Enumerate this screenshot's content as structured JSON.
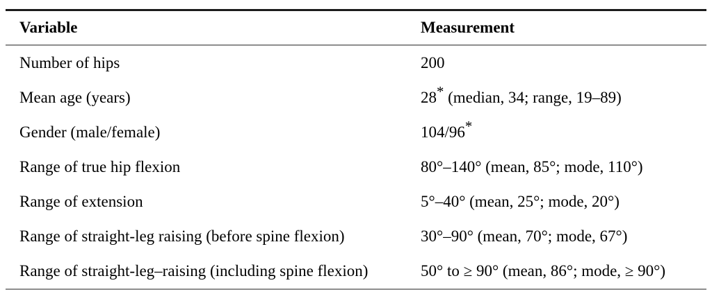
{
  "table": {
    "header": {
      "variable": "Variable",
      "measurement": "Measurement"
    },
    "rows": [
      {
        "variable": "Number of hips",
        "m_pre": "200",
        "m_sup": "",
        "m_post": ""
      },
      {
        "variable": "Mean age (years)",
        "m_pre": "28",
        "m_sup": "*",
        "m_post": " (median, 34; range, 19–89)"
      },
      {
        "variable": "Gender (male/female)",
        "m_pre": "104/96",
        "m_sup": "*",
        "m_post": ""
      },
      {
        "variable": "Range of true hip flexion",
        "m_pre": "80°–140° (mean, 85°; mode, 110°)",
        "m_sup": "",
        "m_post": ""
      },
      {
        "variable": "Range of extension",
        "m_pre": "5°–40° (mean, 25°; mode, 20°)",
        "m_sup": "",
        "m_post": ""
      },
      {
        "variable": "Range of straight-leg raising (before spine flexion)",
        "m_pre": "30°–90° (mean, 70°; mode, 67°)",
        "m_sup": "",
        "m_post": ""
      },
      {
        "variable": "Range of straight-leg–raising (including spine flexion)",
        "m_pre": "50° to ≥ 90° (mean, 86°; mode, ≥ 90°)",
        "m_sup": "",
        "m_post": ""
      }
    ],
    "colors": {
      "top_rule": "#1b1b1b",
      "inner_rule": "#8d8d8d",
      "text": "#000000",
      "background": "#ffffff"
    }
  }
}
